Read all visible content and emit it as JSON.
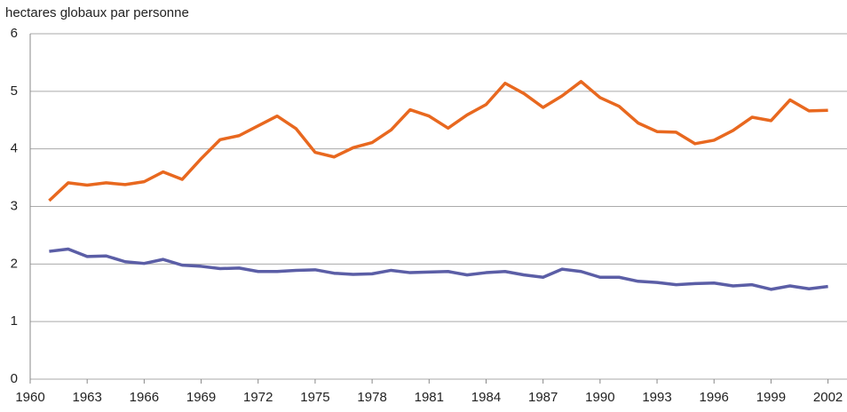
{
  "chart_data": {
    "type": "line",
    "ylabel": "hectares globaux par personne",
    "x": [
      1961,
      1962,
      1963,
      1964,
      1965,
      1966,
      1967,
      1968,
      1969,
      1970,
      1971,
      1972,
      1973,
      1974,
      1975,
      1976,
      1977,
      1978,
      1979,
      1980,
      1981,
      1982,
      1983,
      1984,
      1985,
      1986,
      1987,
      1988,
      1989,
      1990,
      1991,
      1992,
      1993,
      1994,
      1995,
      1996,
      1997,
      1998,
      1999,
      2000,
      2001,
      2002
    ],
    "series": [
      {
        "color": "#e8681f",
        "values": [
          3.1,
          3.41,
          3.37,
          3.41,
          3.38,
          3.43,
          3.6,
          3.47,
          3.83,
          4.16,
          4.23,
          4.4,
          4.57,
          4.35,
          3.94,
          3.86,
          4.02,
          4.11,
          4.33,
          4.68,
          4.57,
          4.36,
          4.59,
          4.77,
          5.14,
          4.96,
          4.72,
          4.92,
          5.17,
          4.89,
          4.74,
          4.45,
          4.3,
          4.29,
          4.09,
          4.15,
          4.32,
          4.55,
          4.49,
          4.85,
          4.66,
          4.67
        ]
      },
      {
        "color": "#5b5ea6",
        "values": [
          2.22,
          2.26,
          2.13,
          2.14,
          2.04,
          2.01,
          2.08,
          1.98,
          1.96,
          1.92,
          1.93,
          1.87,
          1.87,
          1.89,
          1.9,
          1.84,
          1.82,
          1.83,
          1.89,
          1.85,
          1.86,
          1.87,
          1.81,
          1.85,
          1.87,
          1.81,
          1.77,
          1.91,
          1.87,
          1.77,
          1.77,
          1.7,
          1.68,
          1.64,
          1.66,
          1.67,
          1.62,
          1.64,
          1.56,
          1.62,
          1.57,
          1.61
        ]
      }
    ],
    "xlim": [
      1960,
      2003
    ],
    "xticks": [
      1960,
      1963,
      1966,
      1969,
      1972,
      1975,
      1978,
      1981,
      1984,
      1987,
      1990,
      1993,
      1996,
      1999,
      2002
    ],
    "ylim": [
      0,
      6
    ],
    "yticks": [
      0,
      1,
      2,
      3,
      4,
      5,
      6
    ],
    "grid": true
  }
}
